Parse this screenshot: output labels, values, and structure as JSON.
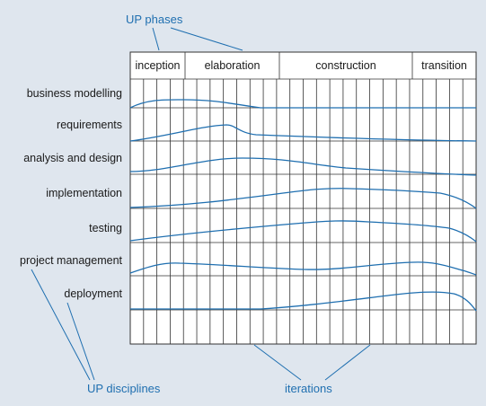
{
  "callouts": {
    "phases": "UP phases",
    "disciplines": "UP disciplines",
    "iterations": "iterations"
  },
  "phases": [
    "inception",
    "elaboration",
    "construction",
    "transition"
  ],
  "disciplines": [
    "business modelling",
    "requirements",
    "analysis and design",
    "implementation",
    "testing",
    "project management",
    "deployment"
  ],
  "colors": {
    "accent": "#1f6fb0",
    "background": "#dfe6ee",
    "grid": "#333333"
  }
}
